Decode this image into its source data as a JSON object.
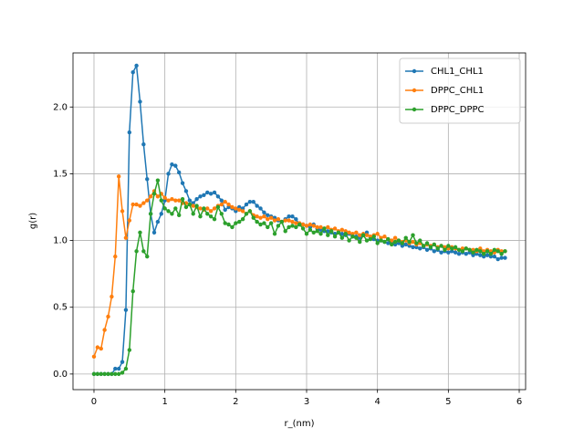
{
  "chart_data": {
    "type": "line",
    "xlabel": "r_(nm)",
    "ylabel": "g(r)",
    "x": [
      0,
      0.05,
      0.1,
      0.15,
      0.2,
      0.25,
      0.3,
      0.35,
      0.4,
      0.45,
      0.5,
      0.55,
      0.6,
      0.65,
      0.7,
      0.75,
      0.8,
      0.85,
      0.9,
      0.95,
      1,
      1.05,
      1.1,
      1.15,
      1.2,
      1.25,
      1.3,
      1.35,
      1.4,
      1.45,
      1.5,
      1.55,
      1.6,
      1.65,
      1.7,
      1.75,
      1.8,
      1.85,
      1.9,
      1.95,
      2,
      2.05,
      2.1,
      2.15,
      2.2,
      2.25,
      2.3,
      2.35,
      2.4,
      2.45,
      2.5,
      2.55,
      2.6,
      2.65,
      2.7,
      2.75,
      2.8,
      2.85,
      2.9,
      2.95,
      3,
      3.05,
      3.1,
      3.15,
      3.2,
      3.25,
      3.3,
      3.35,
      3.4,
      3.45,
      3.5,
      3.55,
      3.6,
      3.65,
      3.7,
      3.75,
      3.8,
      3.85,
      3.9,
      3.95,
      4,
      4.05,
      4.1,
      4.15,
      4.2,
      4.25,
      4.3,
      4.35,
      4.4,
      4.45,
      4.5,
      4.55,
      4.6,
      4.65,
      4.7,
      4.75,
      4.8,
      4.85,
      4.9,
      4.95,
      5,
      5.05,
      5.1,
      5.15,
      5.2,
      5.25,
      5.3,
      5.35,
      5.4,
      5.45,
      5.5,
      5.55,
      5.6,
      5.65,
      5.7,
      5.75,
      5.8
    ],
    "series": [
      {
        "name": "CHL1_CHL1",
        "color": "#1f77b4",
        "values": [
          0,
          0,
          0,
          0,
          0,
          0,
          0.04,
          0.04,
          0.09,
          0.48,
          1.81,
          2.26,
          2.31,
          2.04,
          1.72,
          1.46,
          1.2,
          1.06,
          1.14,
          1.2,
          1.3,
          1.5,
          1.57,
          1.56,
          1.51,
          1.43,
          1.37,
          1.3,
          1.28,
          1.31,
          1.33,
          1.34,
          1.36,
          1.35,
          1.36,
          1.33,
          1.3,
          1.23,
          1.25,
          1.24,
          1.22,
          1.25,
          1.24,
          1.27,
          1.29,
          1.29,
          1.26,
          1.24,
          1.21,
          1.19,
          1.18,
          1.17,
          1.15,
          1.14,
          1.16,
          1.18,
          1.18,
          1.16,
          1.12,
          1.12,
          1.11,
          1.1,
          1.12,
          1.09,
          1.08,
          1.07,
          1.07,
          1.06,
          1.05,
          1.06,
          1.05,
          1.04,
          1.05,
          1.03,
          1.03,
          1.02,
          1.04,
          1.06,
          1.02,
          1.01,
          1.0,
          1.0,
          0.99,
          0.98,
          0.99,
          0.97,
          0.98,
          0.96,
          0.97,
          0.96,
          0.95,
          0.95,
          0.94,
          0.95,
          0.93,
          0.94,
          0.92,
          0.93,
          0.91,
          0.92,
          0.91,
          0.92,
          0.91,
          0.9,
          0.91,
          0.9,
          0.91,
          0.89,
          0.9,
          0.89,
          0.88,
          0.89,
          0.88,
          0.88,
          0.86,
          0.87,
          0.87
        ]
      },
      {
        "name": "DPPC_CHL1",
        "color": "#ff7f0e",
        "values": [
          0.13,
          0.2,
          0.19,
          0.33,
          0.43,
          0.58,
          0.88,
          1.48,
          1.22,
          1.02,
          1.15,
          1.27,
          1.27,
          1.26,
          1.28,
          1.3,
          1.33,
          1.37,
          1.33,
          1.35,
          1.32,
          1.3,
          1.31,
          1.3,
          1.3,
          1.28,
          1.28,
          1.27,
          1.26,
          1.25,
          1.24,
          1.23,
          1.24,
          1.22,
          1.24,
          1.26,
          1.27,
          1.29,
          1.27,
          1.25,
          1.24,
          1.23,
          1.22,
          1.2,
          1.22,
          1.19,
          1.18,
          1.17,
          1.18,
          1.16,
          1.17,
          1.15,
          1.16,
          1.14,
          1.15,
          1.15,
          1.14,
          1.13,
          1.13,
          1.12,
          1.11,
          1.12,
          1.11,
          1.1,
          1.1,
          1.09,
          1.1,
          1.08,
          1.09,
          1.07,
          1.08,
          1.07,
          1.06,
          1.05,
          1.06,
          1.04,
          1.05,
          1.04,
          1.03,
          1.04,
          1.05,
          1.02,
          1.03,
          1.01,
          1.0,
          1.02,
          1.0,
          0.99,
          1.0,
          0.98,
          0.99,
          0.97,
          0.98,
          0.96,
          0.97,
          0.96,
          0.97,
          0.95,
          0.96,
          0.95,
          0.94,
          0.95,
          0.94,
          0.93,
          0.94,
          0.94,
          0.93,
          0.93,
          0.92,
          0.94,
          0.92,
          0.93,
          0.92,
          0.91,
          0.93,
          0.92,
          0.92
        ]
      },
      {
        "name": "DPPC_DPPC",
        "color": "#2ca02c",
        "values": [
          0,
          0,
          0,
          0,
          0,
          0,
          0,
          0,
          0.01,
          0.04,
          0.18,
          0.62,
          0.92,
          1.06,
          0.92,
          0.88,
          1.2,
          1.35,
          1.45,
          1.3,
          1.24,
          1.22,
          1.2,
          1.24,
          1.19,
          1.31,
          1.25,
          1.27,
          1.2,
          1.26,
          1.18,
          1.24,
          1.2,
          1.18,
          1.16,
          1.25,
          1.2,
          1.13,
          1.12,
          1.1,
          1.13,
          1.14,
          1.16,
          1.2,
          1.22,
          1.17,
          1.14,
          1.12,
          1.13,
          1.1,
          1.13,
          1.05,
          1.11,
          1.14,
          1.07,
          1.1,
          1.11,
          1.1,
          1.12,
          1.09,
          1.05,
          1.08,
          1.06,
          1.07,
          1.05,
          1.09,
          1.04,
          1.07,
          1.03,
          1.06,
          1.02,
          1.05,
          1.0,
          1.03,
          1.02,
          0.99,
          1.04,
          1.0,
          1.01,
          1.03,
          0.98,
          1.0,
          0.99,
          1.01,
          0.97,
          0.99,
          1.0,
          0.98,
          1.02,
          0.99,
          1.04,
          0.98,
          1.0,
          0.96,
          0.98,
          0.95,
          0.97,
          0.94,
          0.96,
          0.93,
          0.96,
          0.94,
          0.95,
          0.93,
          0.92,
          0.94,
          0.93,
          0.91,
          0.93,
          0.92,
          0.9,
          0.92,
          0.9,
          0.93,
          0.92,
          0.9,
          0.92
        ]
      }
    ],
    "xlim": [
      -0.296,
      6.09
    ],
    "ylim": [
      -0.117,
      2.405
    ],
    "xticks": [
      0,
      1,
      2,
      3,
      4,
      5,
      6
    ],
    "yticks": [
      {
        "value": 0,
        "label": "0.0"
      },
      0.5,
      {
        "value": 1,
        "label": "1.0"
      },
      1.5,
      {
        "value": 2,
        "label": "2.0"
      }
    ],
    "grid": true,
    "legend": "upper right"
  }
}
